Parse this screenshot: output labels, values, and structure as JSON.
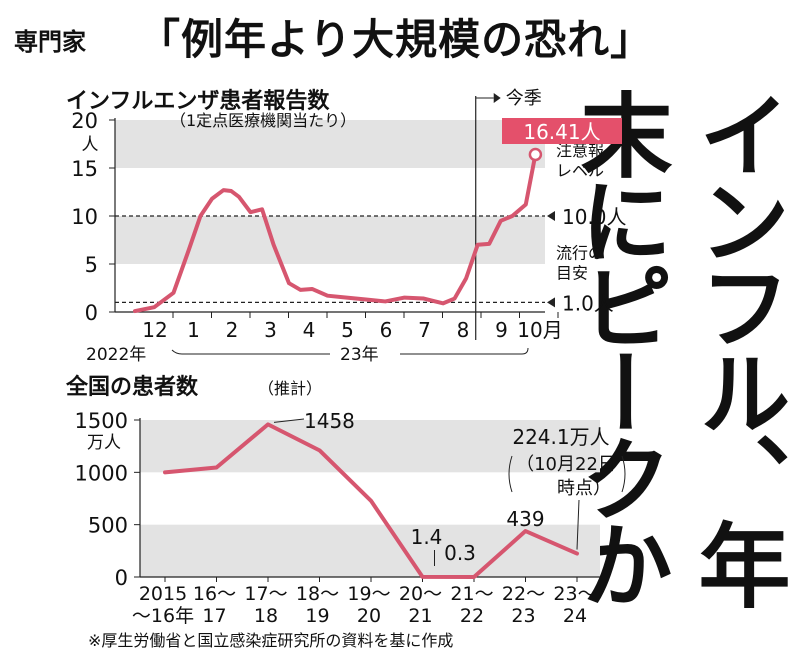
{
  "headline": {
    "prefix": "専門家",
    "quote": "「例年より大規模の恐れ」"
  },
  "vertical_headline": "インフル、年末にピークか",
  "source_note": "※厚生労働省と国立感染症研究所の資料を基に作成",
  "colors": {
    "line": "#d6566f",
    "band": "#e3e3e3",
    "highlight": "#e4506b",
    "text": "#111111"
  },
  "chart_data": [
    {
      "type": "line",
      "title": "インフルエンザ患者報告数",
      "subtitle": "（1定点医療機関当たり）",
      "ylabel": "人",
      "ylim": [
        0,
        20
      ],
      "yticks": [
        0,
        5,
        10,
        15,
        20
      ],
      "month_labels": [
        "12",
        "1",
        "2",
        "3",
        "4",
        "5",
        "6",
        "7",
        "8",
        "9",
        "10月"
      ],
      "year_labels": [
        "2022年",
        "23年"
      ],
      "current_season_label": "今季",
      "x": [
        0,
        0.5,
        1,
        1.4,
        1.7,
        2,
        2.3,
        2.5,
        2.7,
        3,
        3.3,
        3.6,
        4,
        4.3,
        4.6,
        5,
        5.5,
        6,
        6.5,
        7,
        7.5,
        7.8,
        8,
        8.3,
        8.6,
        8.9,
        9.2,
        9.5,
        9.8,
        10.15,
        10.4
      ],
      "values": [
        0.1,
        0.5,
        2.0,
        6.5,
        10.0,
        11.8,
        12.7,
        12.6,
        12.0,
        10.4,
        10.7,
        7.0,
        3.0,
        2.3,
        2.4,
        1.7,
        1.5,
        1.3,
        1.1,
        1.5,
        1.4,
        1.1,
        0.9,
        1.4,
        3.5,
        7.0,
        7.1,
        9.5,
        10.0,
        11.2,
        16.41
      ],
      "latest": {
        "value": 16.41,
        "label": "16.41人"
      },
      "thresholds": [
        {
          "value": 10.0,
          "label": "10.0人",
          "name": [
            "注意報",
            "レベル"
          ]
        },
        {
          "value": 1.0,
          "label": "1.0人",
          "name": [
            "流行の",
            "目安"
          ]
        }
      ]
    },
    {
      "type": "line",
      "title": "全国の患者数",
      "title_note": "（推計）",
      "ylabel": "万人",
      "ylim": [
        0,
        1500
      ],
      "yticks": [
        0,
        500,
        1000,
        1500
      ],
      "categories": [
        "2015\n～16年",
        "16～\n17",
        "17～\n18",
        "18～\n19",
        "19～\n20",
        "20～\n21",
        "21～\n22",
        "22～\n23",
        "23～\n24"
      ],
      "values": [
        1000,
        1046,
        1458,
        1210,
        728,
        1.4,
        0.3,
        439,
        224.1
      ],
      "data_labels": [
        {
          "index": 2,
          "text": "1458"
        },
        {
          "index": 5,
          "text": "1.4"
        },
        {
          "index": 6,
          "text": "0.3"
        },
        {
          "index": 7,
          "text": "439"
        }
      ],
      "latest_note": [
        "224.1万人",
        "（10月22日",
        "時点）"
      ]
    }
  ]
}
